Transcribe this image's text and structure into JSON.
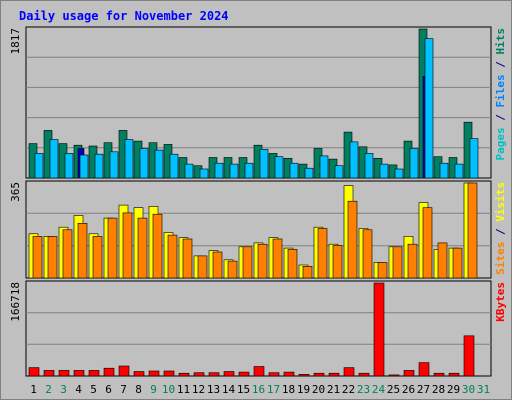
{
  "chart_data": {
    "type": "bar",
    "title": "Daily usage for November 2024",
    "categories": [
      "1",
      "2",
      "3",
      "4",
      "5",
      "6",
      "7",
      "8",
      "9",
      "10",
      "11",
      "12",
      "13",
      "14",
      "15",
      "16",
      "17",
      "18",
      "19",
      "20",
      "21",
      "22",
      "23",
      "24",
      "25",
      "26",
      "27",
      "28",
      "29",
      "30",
      "31"
    ],
    "weekend_days": [
      "2",
      "3",
      "9",
      "10",
      "16",
      "17",
      "23",
      "24",
      "30",
      "31"
    ],
    "panels": [
      {
        "id": "hits",
        "max_label": "1817",
        "ylim": [
          0,
          1817
        ],
        "ylabel_parts": [
          {
            "text": "Pages",
            "color": "#00c0c0"
          },
          {
            "text": " / ",
            "color": "#000080"
          },
          {
            "text": "Files",
            "color": "#0080ff"
          },
          {
            "text": " / ",
            "color": "#000080"
          },
          {
            "text": "Hits",
            "color": "#008060"
          }
        ],
        "series": [
          {
            "name": "Hits",
            "color": "#008060",
            "values": [
              420,
              580,
              420,
              400,
              390,
              430,
              580,
              450,
              430,
              410,
              250,
              150,
              250,
              250,
              250,
              400,
              300,
              240,
              170,
              360,
              230,
              560,
              380,
              240,
              160,
              450,
              1817,
              260,
              250,
              680,
              0
            ]
          },
          {
            "name": "Pages",
            "color": "#0000c0",
            "values": [
              0,
              0,
              0,
              360,
              0,
              0,
              0,
              0,
              0,
              0,
              0,
              0,
              0,
              0,
              0,
              0,
              0,
              0,
              0,
              0,
              0,
              0,
              0,
              0,
              0,
              0,
              1240,
              0,
              0,
              0,
              0
            ]
          },
          {
            "name": "Files",
            "color": "#00c0ff",
            "values": [
              300,
              470,
              300,
              280,
              290,
              320,
              470,
              360,
              340,
              290,
              170,
              110,
              180,
              170,
              180,
              350,
              260,
              180,
              120,
              270,
              150,
              440,
              300,
              170,
              110,
              360,
              1700,
              180,
              170,
              480,
              0
            ]
          }
        ]
      },
      {
        "id": "visits",
        "max_label": "365",
        "ylim": [
          0,
          365
        ],
        "ylabel_parts": [
          {
            "text": "Sites",
            "color": "#ff8000"
          },
          {
            "text": " / ",
            "color": "#000080"
          },
          {
            "text": "Visits",
            "color": "#ffff00"
          }
        ],
        "series": [
          {
            "name": "Visits",
            "color": "#ffff00",
            "values": [
              170,
              160,
              195,
              240,
              170,
              230,
              280,
              270,
              275,
              175,
              155,
              85,
              105,
              70,
              120,
              135,
              155,
              115,
              50,
              195,
              130,
              355,
              190,
              60,
              120,
              160,
              290,
              110,
              115,
              365,
              0
            ]
          },
          {
            "name": "Sites",
            "color": "#ff8000",
            "values": [
              160,
              160,
              185,
              210,
              160,
              230,
              250,
              230,
              245,
              165,
              150,
              85,
              100,
              65,
              120,
              130,
              150,
              110,
              45,
              190,
              125,
              295,
              185,
              60,
              120,
              130,
              270,
              135,
              115,
              365,
              0
            ]
          }
        ]
      },
      {
        "id": "kbytes",
        "max_label": "166718",
        "ylim": [
          0,
          166718
        ],
        "ylabel_parts": [
          {
            "text": "KBytes",
            "color": "#ff0000"
          }
        ],
        "series": [
          {
            "name": "KBytes",
            "color": "#ff0000",
            "values": [
              15000,
              10000,
              10000,
              10000,
              10000,
              14000,
              18000,
              8000,
              9000,
              9000,
              5000,
              6000,
              6000,
              8000,
              7000,
              17000,
              6000,
              7000,
              3000,
              5000,
              5000,
              15000,
              5000,
              166718,
              2000,
              10000,
              24000,
              5000,
              5000,
              72000,
              0
            ]
          }
        ]
      }
    ]
  },
  "colors": {
    "background": "#c0c0c0",
    "title": "#0000ff",
    "axis_text": "#000000",
    "weekday_label": "#000000",
    "weekend_label": "#00805c",
    "gridline": "#808080"
  }
}
